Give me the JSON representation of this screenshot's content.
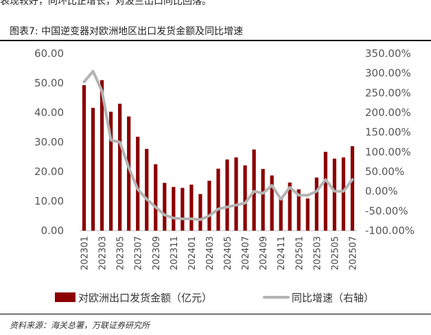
{
  "header": {
    "intro_text": "表现较好，同环比正增长，对波兰出口同比回落。",
    "figure_title": "图表7:  中国逆变器对欧洲地区出口发货金额及同比增速"
  },
  "footer": {
    "source": "资料来源：海关总署，万联证券研究所"
  },
  "colors": {
    "bar": "#8B0000",
    "line": "#B3B3B3"
  },
  "chart_data": {
    "type": "bar",
    "categories": [
      "202301",
      "202302",
      "202303",
      "202304",
      "202305",
      "202306",
      "202307",
      "202308",
      "202309",
      "202310",
      "202311",
      "202312",
      "202401",
      "202402",
      "202403",
      "202404",
      "202405",
      "202406",
      "202407",
      "202408",
      "202409",
      "202410",
      "202411",
      "202412",
      "202501",
      "202502",
      "202503",
      "202504",
      "202505",
      "202506",
      "202507"
    ],
    "x_tick_labels": [
      "202301",
      "202303",
      "202305",
      "202307",
      "202309",
      "202311",
      "202401",
      "202403",
      "202405",
      "202407",
      "202409",
      "202411",
      "202501",
      "202503",
      "202505",
      "202507"
    ],
    "series": [
      {
        "name": "对欧洲出口发货金额（亿元）",
        "type": "bar",
        "axis": "left",
        "values": [
          49.3,
          41.6,
          51.0,
          40.3,
          43.0,
          38.7,
          31.8,
          27.7,
          22.5,
          16.2,
          14.8,
          14.5,
          15.6,
          12.4,
          16.9,
          21.0,
          24.1,
          24.8,
          22.1,
          27.5,
          20.9,
          18.7,
          10.8,
          16.3,
          14.0,
          10.9,
          18.0,
          26.7,
          24.4,
          24.8,
          28.6
        ]
      },
      {
        "name": "同比增速（右轴）",
        "type": "line",
        "axis": "right",
        "values": [
          278,
          305,
          255,
          130,
          125,
          60,
          5,
          -20,
          -40,
          -60,
          -68,
          -70,
          -70,
          -72,
          -62,
          -45,
          -40,
          -35,
          -30,
          0,
          -5,
          15,
          -20,
          10,
          -10,
          -10,
          0,
          30,
          0,
          0,
          30
        ]
      }
    ],
    "y_left": {
      "ylim": [
        0,
        60
      ],
      "ticks": [
        "60.00",
        "50.00",
        "40.00",
        "30.00",
        "20.00",
        "10.00",
        "0.00"
      ]
    },
    "y_right": {
      "ylim": [
        -100,
        350
      ],
      "ticks": [
        "350.00%",
        "300.00%",
        "250.00%",
        "200.00%",
        "150.00%",
        "100.00%",
        "50.00%",
        "0.00%",
        "-50.00%",
        "-100.00%"
      ]
    },
    "legend": {
      "placement": "bottom",
      "bar_label": "对欧洲出口发货金额（亿元）",
      "line_label": "同比增速（右轴）"
    },
    "grid": false
  }
}
